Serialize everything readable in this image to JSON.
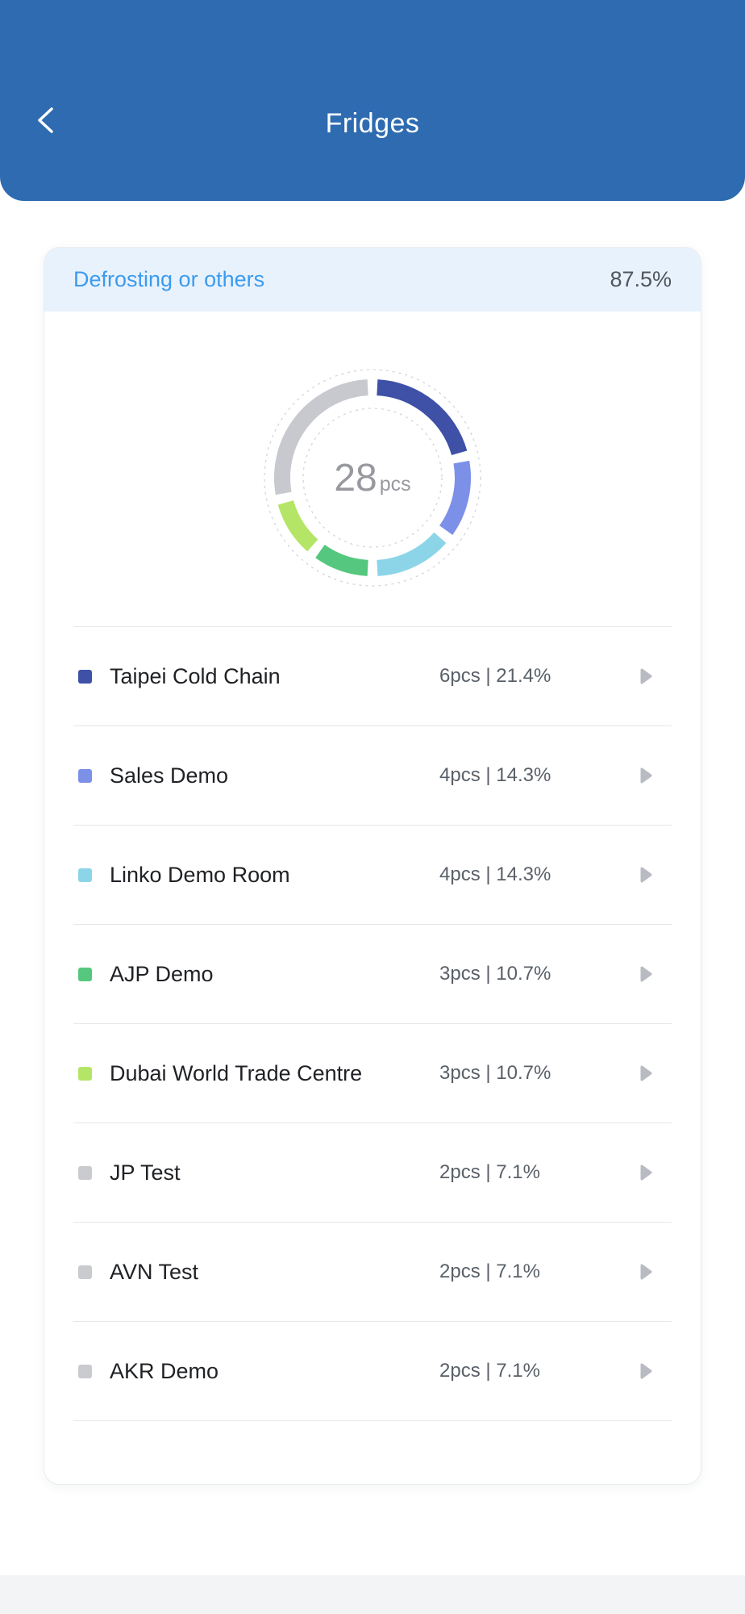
{
  "header": {
    "title": "Fridges"
  },
  "summary_banner": {
    "label": "Defrosting or others",
    "value": "87.5%"
  },
  "chart_data": {
    "type": "donut",
    "center": {
      "value": "28",
      "unit": "pcs"
    },
    "total_pcs": 28,
    "segments": [
      {
        "label": "Taipei Cold Chain",
        "pcs": 6,
        "percent": 21.4,
        "color": "#3e51a7"
      },
      {
        "label": "Sales Demo",
        "pcs": 4,
        "percent": 14.3,
        "color": "#7d90e8"
      },
      {
        "label": "Linko Demo Room",
        "pcs": 4,
        "percent": 14.3,
        "color": "#8cd5e8"
      },
      {
        "label": "AJP Demo",
        "pcs": 3,
        "percent": 10.7,
        "color": "#56c77e"
      },
      {
        "label": "Dubai World Trade Centre",
        "pcs": 3,
        "percent": 10.7,
        "color": "#b5e566"
      },
      {
        "label": "",
        "percent": 28.6,
        "color": "#c7c9ce"
      }
    ]
  },
  "list": {
    "rows": [
      {
        "label": "Taipei Cold Chain",
        "value": "6pcs | 21.4%",
        "color": "#3e51a7"
      },
      {
        "label": "Sales Demo",
        "value": "4pcs | 14.3%",
        "color": "#7d90e8"
      },
      {
        "label": "Linko Demo Room",
        "value": "4pcs | 14.3%",
        "color": "#8cd5e8"
      },
      {
        "label": "AJP Demo",
        "value": "3pcs | 10.7%",
        "color": "#56c77e"
      },
      {
        "label": "Dubai World Trade Centre",
        "value": "3pcs | 10.7%",
        "color": "#b5e566"
      },
      {
        "label": "JP Test",
        "value": "2pcs | 7.1%",
        "color": "#c9cbcf"
      },
      {
        "label": "AVN Test",
        "value": "2pcs | 7.1%",
        "color": "#c9cbcf"
      },
      {
        "label": "AKR Demo",
        "value": "2pcs | 7.1%",
        "color": "#c9cbcf"
      }
    ]
  }
}
